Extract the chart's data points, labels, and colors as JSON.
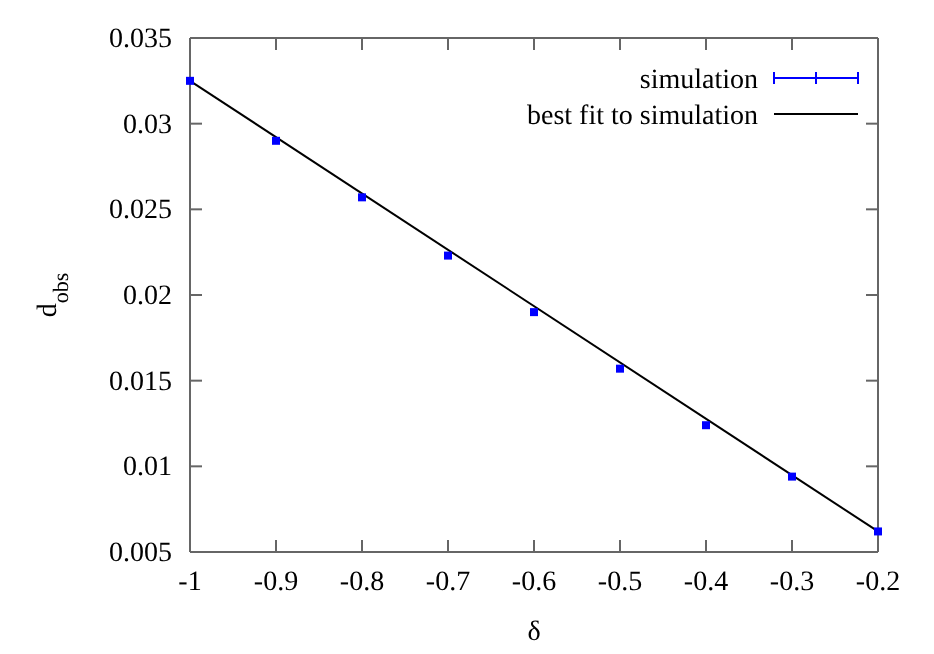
{
  "chart_data": {
    "type": "scatter",
    "xlabel": "δ",
    "ylabel": "d$_{obs}$",
    "xlim": [
      -1,
      -0.2
    ],
    "xticks": [
      -1,
      -0.9,
      -0.8,
      -0.7,
      -0.6,
      -0.5,
      -0.4,
      -0.3,
      -0.2
    ],
    "ylim": [
      0.005,
      0.035
    ],
    "yticks": [
      0.005,
      0.01,
      0.015,
      0.02,
      0.025,
      0.03,
      0.035
    ],
    "legend": "top right",
    "grid": false,
    "series": [
      {
        "name": "simulation",
        "color": "#0000ff",
        "marker": "square",
        "x": [
          -1,
          -0.9,
          -0.8,
          -0.7,
          -0.6,
          -0.5,
          -0.4,
          -0.3,
          -0.2
        ],
        "values": [
          0.0325,
          0.029,
          0.0257,
          0.0223,
          0.019,
          0.0157,
          0.0124,
          0.0094,
          0.0062
        ]
      },
      {
        "name": "best fit to simulation",
        "type": "line",
        "color": "#000000",
        "line_style": "solid",
        "x": [
          -1,
          -0.2
        ],
        "values": [
          0.0325,
          0.0062
        ]
      }
    ]
  }
}
